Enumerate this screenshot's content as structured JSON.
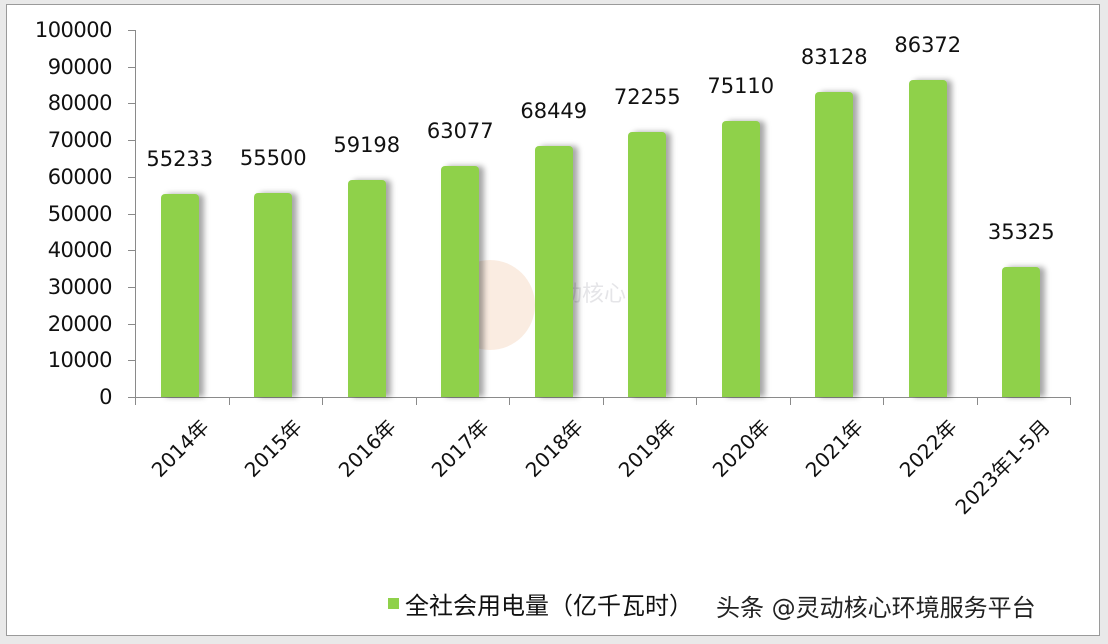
{
  "chart_data": {
    "type": "bar",
    "title": "",
    "xlabel": "",
    "ylabel": "",
    "ylim": [
      0,
      100000
    ],
    "yticks": [
      0,
      10000,
      20000,
      30000,
      40000,
      50000,
      60000,
      70000,
      80000,
      90000,
      100000
    ],
    "categories": [
      "2014年",
      "2015年",
      "2016年",
      "2017年",
      "2018年",
      "2019年",
      "2020年",
      "2021年",
      "2022年",
      "2023年1-5月"
    ],
    "series": [
      {
        "name": "全社会用电量（亿千瓦时）",
        "color": "#8fd14a",
        "values": [
          55233,
          55500,
          59198,
          63077,
          68449,
          72255,
          75110,
          83128,
          86372,
          35325
        ]
      }
    ],
    "legend_position": "bottom",
    "grid": false
  },
  "legend": {
    "label": "全社会用电量（亿千瓦时）"
  },
  "watermark": {
    "text": "头条 @灵动核心环境服务平台",
    "logo_text": "灵动核心"
  }
}
